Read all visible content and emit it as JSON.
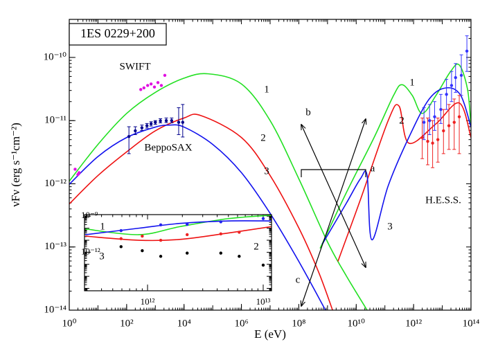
{
  "chart_data": [
    {
      "type": "line",
      "title": "1ES 0229+200",
      "x_label": "E (eV)",
      "y_label": "νFν (erg s⁻¹cm⁻²)",
      "xscale": "log",
      "yscale": "log",
      "xlim": [
        1,
        100000000000000.0
      ],
      "ylim": [
        1e-14,
        4e-10
      ],
      "xticks": [
        {
          "value": 1,
          "label": "10⁰"
        },
        {
          "value": 100,
          "label": "10²"
        },
        {
          "value": 10000,
          "label": "10⁴"
        },
        {
          "value": 1000000,
          "label": "10⁶"
        },
        {
          "value": 100000000,
          "label": "10⁸"
        },
        {
          "value": 10000000000,
          "label": "10¹⁰"
        },
        {
          "value": 1000000000000,
          "label": "10¹²"
        },
        {
          "value": 100000000000000,
          "label": "10¹⁴"
        }
      ],
      "yticks": [
        {
          "value": 1e-14,
          "label": "10⁻¹⁴"
        },
        {
          "value": 1e-13,
          "label": "10⁻¹³"
        },
        {
          "value": 1e-12,
          "label": "10⁻¹²"
        },
        {
          "value": 1e-11,
          "label": "10⁻¹¹"
        },
        {
          "value": 1e-10,
          "label": "10⁻¹⁰"
        }
      ],
      "annotations": [
        "SWIFT",
        "BeppoSAX",
        "1",
        "2",
        "3",
        "1",
        "2",
        "3",
        "H.E.S.S.",
        "a",
        "b",
        "c"
      ],
      "series": [
        {
          "type": "line",
          "color": "#22e022",
          "x": [
            1,
            10,
            100,
            1000,
            10000,
            70000,
            1000000,
            10000000,
            100000000,
            1000000000,
            4500000000,
            24000000000,
            null,
            550000000,
            4500000000,
            42000000000,
            200000000000,
            390000000000,
            900000000000,
            2000000000000,
            6000000000000,
            19000000000000,
            39000000000000,
            76000000000000,
            100000000000000
          ],
          "y": [
            1.1e-12,
            4.2e-12,
            1.3e-11,
            2.8e-11,
            4.7e-11,
            5.5e-11,
            3.8e-11,
            1e-11,
            1.2e-12,
            1.2e-13,
            3.5e-14,
            1e-14,
            null,
            9.5e-14,
            7.2e-13,
            5.4e-12,
            2.5e-11,
            3.7e-11,
            2.5e-11,
            1.3e-11,
            2.5e-11,
            5.9e-11,
            7.6e-11,
            3.1e-11,
            7.9e-12
          ]
        },
        {
          "type": "line",
          "color": "#ee1111",
          "x": [
            1,
            10,
            100,
            1000,
            10000,
            39000,
            1000000,
            10000000,
            100000000,
            490000000,
            1500000000,
            null,
            2300000000,
            14000000000,
            130000000000,
            310000000000,
            680000000000,
            6000000000000,
            39000000000000,
            100000000000000
          ],
          "y": [
            4.8e-13,
            1.35e-12,
            3.2e-12,
            6.9e-12,
            1.1e-11,
            1.2e-11,
            5.4e-12,
            1.35e-12,
            2e-13,
            4e-14,
            1e-14,
            null,
            5.9e-14,
            5.6e-13,
            1e-11,
            1.7e-11,
            4.4e-12,
            8.9e-12,
            1.9e-11,
            5.4e-12
          ]
        },
        {
          "type": "line",
          "color": "#1111ee",
          "x": [
            1,
            10,
            100,
            1000,
            3200,
            10000,
            100000,
            1000000,
            10000000,
            100000000,
            850000000,
            null,
            650000000,
            4500000000,
            14000000000,
            24000000000,
            35000000000,
            130000000000,
            680000000000,
            3500000000000,
            14000000000000,
            44000000000000,
            100000000000000
          ],
          "y": [
            9.8e-13,
            2.7e-12,
            5.4e-12,
            7.9e-12,
            8.5e-12,
            7.9e-12,
            4.2e-12,
            1.5e-12,
            3.4e-13,
            5.9e-14,
            1e-14,
            null,
            1.1e-13,
            4.9e-13,
            1.2e-12,
            1.35e-12,
            1.3e-13,
            9.3e-13,
            5.4e-12,
            2.2e-11,
            3.3e-11,
            2.5e-11,
            7.9e-12
          ]
        },
        {
          "type": "scatter",
          "color": "#e010e0",
          "x": [
            1.6,
            2.0,
            2.2,
            310,
            400,
            540,
            710,
            930,
            1230,
            1620,
            2140
          ],
          "y": [
            1.7e-12,
            1.4e-12,
            1.5e-12,
            3.1e-11,
            3.3e-11,
            3.6e-11,
            3.8e-11,
            3.4e-11,
            4e-11,
            3.6e-11,
            5.2e-11
          ]
        },
        {
          "type": "scatter",
          "color": "#00008b",
          "x": [
            120,
            200,
            340,
            510,
            710,
            1000,
            1500,
            2400,
            3700,
            6500,
            9000
          ],
          "y": [
            5.6e-12,
            6.9e-12,
            7.7e-12,
            8.3e-12,
            8.9e-12,
            9.4e-12,
            9.9e-12,
            1e-11,
            1e-11,
            9.4e-12,
            9.4e-12
          ],
          "ylow": [
            3e-12,
            6e-12,
            7e-12,
            7.6e-12,
            8.2e-12,
            8.7e-12,
            9.2e-12,
            9.3e-12,
            9.2e-12,
            6e-12,
            5.5e-12
          ],
          "yhigh": [
            8e-12,
            8e-12,
            8.5e-12,
            9e-12,
            9.6e-12,
            1e-11,
            1.07e-11,
            1.1e-11,
            1.1e-11,
            1.6e-11,
            1.8e-11
          ]
        },
        {
          "type": "scatter",
          "color": "#3333ff",
          "x": [
            2300000000000,
            3600000000000,
            5400000000000,
            8900000000000,
            14000000000000,
            21000000000000,
            29000000000000,
            46000000000000,
            72000000000000
          ],
          "y": [
            9.4e-12,
            1e-11,
            1.15e-11,
            1.5e-11,
            2.6e-11,
            3.6e-11,
            4.8e-11,
            5.2e-11,
            1.26e-10
          ],
          "ylow": [
            5e-12,
            6e-12,
            7e-12,
            9e-12,
            1.5e-11,
            2e-11,
            2.8e-11,
            2.5e-11,
            6e-11
          ],
          "yhigh": [
            1.6e-11,
            1.8e-11,
            2e-11,
            2.6e-11,
            4.5e-11,
            6e-11,
            8e-11,
            1.1e-10,
            2.2e-10
          ]
        },
        {
          "type": "scatter",
          "color": "#ee2222",
          "x": [
            2000000000000,
            3100000000000,
            4600000000000,
            7000000000000,
            11000000000000,
            17000000000000,
            26000000000000,
            39000000000000
          ],
          "y": [
            5.4e-12,
            4.7e-12,
            4.4e-12,
            5e-12,
            6.9e-12,
            8.3e-12,
            9.4e-12,
            1.15e-11
          ],
          "ylow": [
            2.5e-12,
            2e-12,
            1.8e-12,
            2.2e-12,
            3e-12,
            3.5e-12,
            3.5e-12,
            3e-12
          ],
          "yhigh": [
            1.1e-11,
            1.1e-11,
            1e-11,
            1.1e-11,
            1.5e-11,
            1.8e-11,
            2.2e-11,
            2.5e-11
          ]
        }
      ]
    },
    {
      "type": "line",
      "xscale": "log",
      "yscale": "log",
      "xlim": [
        285000000000,
        11800000000000
      ],
      "ylim": [
        6.3e-16,
        1.35e-09
      ],
      "xticks": [
        {
          "value": 1000000000000,
          "label": "10¹²"
        },
        {
          "value": 10000000000000,
          "label": "10¹³"
        }
      ],
      "yticks": [
        {
          "value": 1e-09,
          "label": "10⁻⁹"
        },
        {
          "value": 1e-12,
          "label": "10⁻¹²"
        }
      ],
      "annotations": [
        "1",
        "2",
        "3"
      ],
      "series": [
        {
          "type": "line",
          "color": "#22e022",
          "x": [
            290000000000,
            840000000000,
            1900000000000,
            5000000000000,
            11700000000000
          ],
          "y": [
            8.6e-11,
            2.9e-11,
            1.35e-10,
            6.3e-10,
            1.2e-09
          ]
        },
        {
          "type": "line",
          "color": "#1111ee",
          "x": [
            290000000000,
            840000000000,
            1900000000000,
            5000000000000,
            11700000000000
          ],
          "y": [
            2.9e-11,
            1e-10,
            2.5e-10,
            4e-10,
            4e-10
          ]
        },
        {
          "type": "line",
          "color": "#ee1111",
          "x": [
            290000000000,
            840000000000,
            1900000000000,
            5000000000000,
            11700000000000
          ],
          "y": [
            2.2e-11,
            1e-11,
            1.17e-11,
            4e-11,
            1.35e-10
          ]
        },
        {
          "type": "scatter",
          "color": "#2222ee",
          "x": [
            590000000000,
            1300000000000,
            2200000000000,
            4300000000000,
            10000000000000
          ],
          "y": [
            6.3e-11,
            1.9e-10,
            2.1e-10,
            3.4e-10,
            6.3e-10
          ]
        },
        {
          "type": "scatter",
          "color": "#ee2222",
          "x": [
            590000000000,
            900000000000,
            1300000000000,
            2200000000000,
            4300000000000,
            6200000000000
          ],
          "y": [
            1.35e-11,
            2.2e-11,
            1e-11,
            2.9e-11,
            3.4e-11,
            4.6e-11
          ]
        },
        {
          "type": "scatter",
          "color": "#000000",
          "x": [
            590000000000,
            900000000000,
            1300000000000,
            2200000000000,
            4300000000000,
            6200000000000,
            10000000000000
          ],
          "y": [
            2.9e-12,
            1.35e-12,
            4.6e-13,
            8.5e-13,
            8.5e-13,
            4.6e-13,
            8.5e-14
          ]
        }
      ]
    }
  ]
}
